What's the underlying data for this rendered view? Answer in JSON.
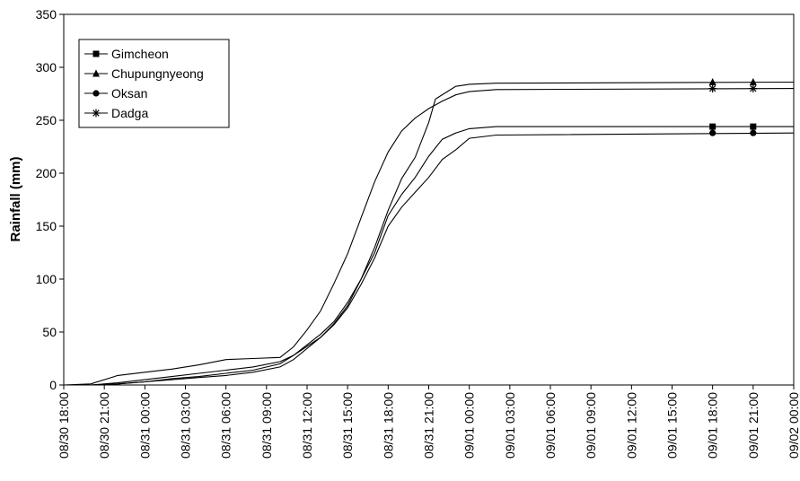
{
  "chart_data": {
    "type": "line",
    "title": "",
    "xlabel": "",
    "ylabel": "Rainfall (mm)",
    "ylim": [
      0,
      350
    ],
    "yticks": [
      0,
      50,
      100,
      150,
      200,
      250,
      300,
      350
    ],
    "xlim": [
      "08/30 18:00",
      "09/02 00:00"
    ],
    "xticks": [
      "08/30 18:00",
      "08/30 21:00",
      "08/31 00:00",
      "08/31 03:00",
      "08/31 06:00",
      "08/31 09:00",
      "08/31 12:00",
      "08/31 15:00",
      "08/31 18:00",
      "08/31 21:00",
      "09/01 00:00",
      "09/01 03:00",
      "09/01 06:00",
      "09/01 09:00",
      "09/01 12:00",
      "09/01 15:00",
      "09/01 18:00",
      "09/01 21:00",
      "09/02 00:00"
    ],
    "grid": false,
    "legend_position": "top-left",
    "series": [
      {
        "name": "Gimcheon",
        "marker": "square",
        "points": [
          [
            "08/30 18:00",
            0
          ],
          [
            "08/30 20:00",
            0
          ],
          [
            "08/30 22:00",
            1
          ],
          [
            "08/31 00:00",
            3
          ],
          [
            "08/31 02:00",
            6
          ],
          [
            "08/31 04:00",
            8
          ],
          [
            "08/31 06:00",
            11
          ],
          [
            "08/31 08:00",
            14
          ],
          [
            "08/31 10:00",
            20
          ],
          [
            "08/31 11:00",
            28
          ],
          [
            "08/31 13:00",
            48
          ],
          [
            "08/31 14:00",
            60
          ],
          [
            "08/31 15:00",
            78
          ],
          [
            "08/31 16:00",
            100
          ],
          [
            "08/31 17:00",
            125
          ],
          [
            "08/31 18:00",
            160
          ],
          [
            "08/31 19:00",
            180
          ],
          [
            "08/31 20:00",
            196
          ],
          [
            "08/31 21:00",
            216
          ],
          [
            "08/31 22:00",
            232
          ],
          [
            "08/31 23:00",
            238
          ],
          [
            "09/01 00:00",
            242
          ],
          [
            "09/01 02:00",
            244
          ],
          [
            "09/02 00:00",
            244
          ]
        ],
        "marker_points": [
          [
            "09/01 18:00",
            244
          ],
          [
            "09/01 21:00",
            244
          ]
        ]
      },
      {
        "name": "Chupungnyeong",
        "marker": "triangle",
        "points": [
          [
            "08/30 18:00",
            0
          ],
          [
            "08/30 20:00",
            0
          ],
          [
            "08/30 22:00",
            2
          ],
          [
            "08/31 00:00",
            5
          ],
          [
            "08/31 02:00",
            8
          ],
          [
            "08/31 04:00",
            11
          ],
          [
            "08/31 06:00",
            14
          ],
          [
            "08/31 08:00",
            17
          ],
          [
            "08/31 10:00",
            22
          ],
          [
            "08/31 11:00",
            28
          ],
          [
            "08/31 13:00",
            45
          ],
          [
            "08/31 14:00",
            58
          ],
          [
            "08/31 15:00",
            75
          ],
          [
            "08/31 16:00",
            100
          ],
          [
            "08/31 17:00",
            130
          ],
          [
            "08/31 18:00",
            165
          ],
          [
            "08/31 19:00",
            195
          ],
          [
            "08/31 20:00",
            215
          ],
          [
            "08/31 21:00",
            248
          ],
          [
            "08/31 21:30",
            270
          ],
          [
            "08/31 23:00",
            282
          ],
          [
            "09/01 00:00",
            284
          ],
          [
            "09/01 02:00",
            285
          ],
          [
            "09/02 00:00",
            286
          ]
        ],
        "marker_points": [
          [
            "09/01 18:00",
            286
          ],
          [
            "09/01 21:00",
            286
          ]
        ]
      },
      {
        "name": "Oksan",
        "marker": "circle",
        "points": [
          [
            "08/30 18:00",
            0
          ],
          [
            "08/30 20:00",
            0
          ],
          [
            "08/30 22:00",
            1
          ],
          [
            "08/31 00:00",
            3
          ],
          [
            "08/31 02:00",
            5
          ],
          [
            "08/31 04:00",
            7
          ],
          [
            "08/31 06:00",
            9
          ],
          [
            "08/31 08:00",
            12
          ],
          [
            "08/31 10:00",
            17
          ],
          [
            "08/31 11:00",
            24
          ],
          [
            "08/31 13:00",
            45
          ],
          [
            "08/31 14:00",
            57
          ],
          [
            "08/31 15:00",
            73
          ],
          [
            "08/31 16:00",
            95
          ],
          [
            "08/31 17:00",
            120
          ],
          [
            "08/31 18:00",
            150
          ],
          [
            "08/31 19:00",
            168
          ],
          [
            "08/31 20:00",
            182
          ],
          [
            "08/31 21:00",
            196
          ],
          [
            "08/31 22:00",
            213
          ],
          [
            "08/31 23:00",
            222
          ],
          [
            "09/01 00:00",
            233
          ],
          [
            "09/01 02:00",
            236
          ],
          [
            "09/02 00:00",
            238
          ]
        ],
        "marker_points": [
          [
            "09/01 18:00",
            238
          ],
          [
            "09/01 21:00",
            238
          ]
        ]
      },
      {
        "name": "Dadga",
        "marker": "star",
        "points": [
          [
            "08/30 18:00",
            0
          ],
          [
            "08/30 20:00",
            1
          ],
          [
            "08/30 22:00",
            9
          ],
          [
            "08/31 00:00",
            12
          ],
          [
            "08/31 02:00",
            15
          ],
          [
            "08/31 04:00",
            19
          ],
          [
            "08/31 06:00",
            24
          ],
          [
            "08/31 08:00",
            25
          ],
          [
            "08/31 10:00",
            26
          ],
          [
            "08/31 11:00",
            36
          ],
          [
            "08/31 12:00",
            52
          ],
          [
            "08/31 13:00",
            70
          ],
          [
            "08/31 14:00",
            96
          ],
          [
            "08/31 15:00",
            124
          ],
          [
            "08/31 16:00",
            158
          ],
          [
            "08/31 17:00",
            192
          ],
          [
            "08/31 18:00",
            220
          ],
          [
            "08/31 19:00",
            240
          ],
          [
            "08/31 20:00",
            252
          ],
          [
            "08/31 21:00",
            261
          ],
          [
            "08/31 22:00",
            268
          ],
          [
            "08/31 23:00",
            274
          ],
          [
            "09/01 00:00",
            277
          ],
          [
            "09/01 02:00",
            279
          ],
          [
            "09/02 00:00",
            280
          ]
        ],
        "marker_points": [
          [
            "09/01 18:00",
            280
          ],
          [
            "09/01 21:00",
            280
          ]
        ]
      }
    ]
  }
}
